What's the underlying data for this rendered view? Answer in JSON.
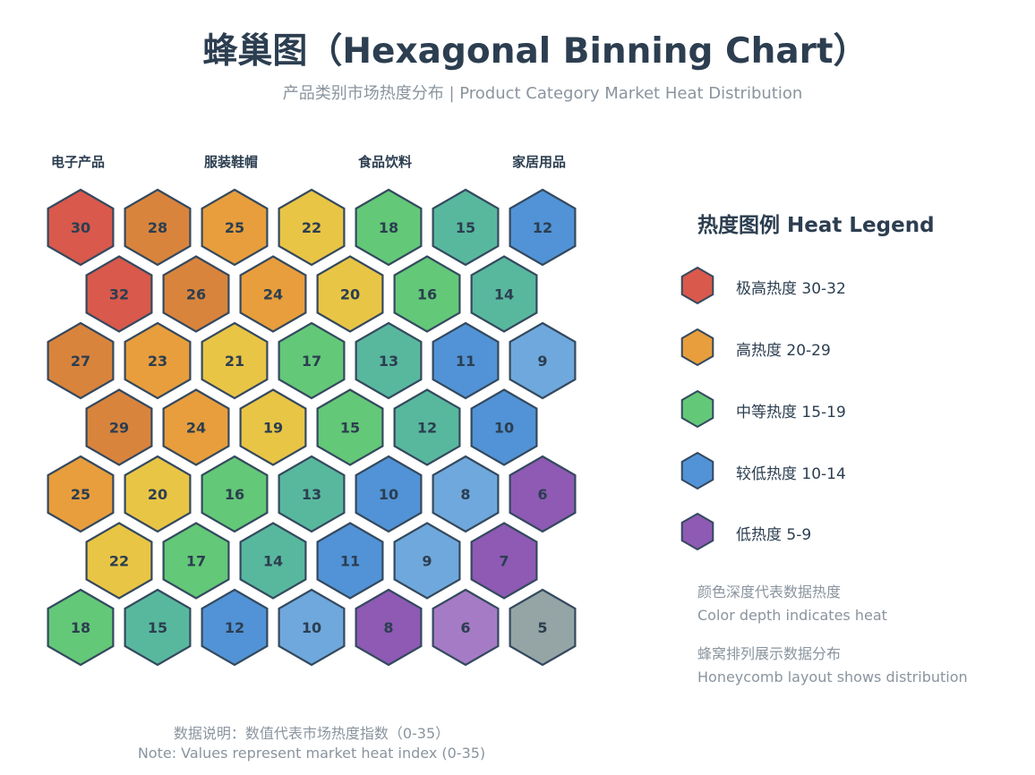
{
  "header": {
    "title": "蜂巢图（Hexagonal Binning Chart）",
    "subtitle": "产品类别市场热度分布 | Product Category Market Heat Distribution"
  },
  "chart_data": {
    "type": "heatmap",
    "layout": "hexagonal honeycomb, 7 rows; odd rows offset by half a cell",
    "categories": [
      "电子产品",
      "服装鞋帽",
      "食品饮料",
      "家居用品"
    ],
    "rows": [
      [
        30,
        28,
        25,
        22,
        18,
        15,
        12
      ],
      [
        32,
        26,
        24,
        20,
        16,
        14
      ],
      [
        27,
        23,
        21,
        17,
        13,
        11,
        9
      ],
      [
        29,
        24,
        19,
        15,
        12,
        10
      ],
      [
        25,
        20,
        16,
        13,
        10,
        8,
        6
      ],
      [
        22,
        17,
        14,
        11,
        9,
        7
      ],
      [
        18,
        15,
        12,
        10,
        8,
        6,
        5
      ]
    ],
    "value_range": [
      0,
      35
    ],
    "colors": {
      "32": "#d9594c",
      "30": "#d9594c",
      "29": "#d9843c",
      "28": "#d9843c",
      "27": "#d9843c",
      "26": "#d9843c",
      "25": "#e89e3c",
      "24": "#e89e3c",
      "23": "#e89e3c",
      "22": "#e9c545",
      "21": "#e9c545",
      "20": "#e9c545",
      "19": "#e9c545",
      "18": "#63c878",
      "17": "#63c878",
      "16": "#63c878",
      "15": "#63c878",
      "14": "#58b89e",
      "13": "#58b89e",
      "12": "#58b89e",
      "11": "#5193d6",
      "10": "#5193d6",
      "9": "#6fa8dc",
      "8": "#6fa8dc",
      "7": "#8e5ab4",
      "6": "#8e5ab4",
      "5": "#95a5a6"
    },
    "color_overrides": [
      {
        "row": 0,
        "col": 5,
        "color": "#58b89e"
      },
      {
        "row": 0,
        "col": 6,
        "color": "#5193d6"
      },
      {
        "row": 3,
        "col": 3,
        "color": "#63c878"
      },
      {
        "row": 4,
        "col": 4,
        "color": "#5193d6"
      },
      {
        "row": 4,
        "col": 5,
        "color": "#6fa8dc"
      },
      {
        "row": 4,
        "col": 6,
        "color": "#8e5ab4"
      },
      {
        "row": 5,
        "col": 4,
        "color": "#6fa8dc"
      },
      {
        "row": 5,
        "col": 5,
        "color": "#8e5ab4"
      },
      {
        "row": 6,
        "col": 0,
        "color": "#63c878"
      },
      {
        "row": 6,
        "col": 1,
        "color": "#58b89e"
      },
      {
        "row": 6,
        "col": 2,
        "color": "#5193d6"
      },
      {
        "row": 6,
        "col": 3,
        "color": "#6fa8dc"
      },
      {
        "row": 6,
        "col": 4,
        "color": "#8e5ab4"
      },
      {
        "row": 6,
        "col": 5,
        "color": "#a67bc5"
      },
      {
        "row": 6,
        "col": 6,
        "color": "#95a5a6"
      }
    ],
    "legend": [
      {
        "label": "极高热度 30-32",
        "color": "#d9594c"
      },
      {
        "label": "高热度 20-29",
        "color": "#e89e3c"
      },
      {
        "label": "中等热度 15-19",
        "color": "#63c878"
      },
      {
        "label": "较低热度 10-14",
        "color": "#5193d6"
      },
      {
        "label": "低热度 5-9",
        "color": "#8e5ab4"
      }
    ]
  },
  "legend_panel": {
    "title": "热度图例 Heat Legend",
    "notes": [
      {
        "line1": "颜色深度代表数据热度",
        "line2": "Color depth indicates heat"
      },
      {
        "line1": "蜂窝排列展示数据分布",
        "line2": "Honeycomb layout shows distribution"
      }
    ]
  },
  "footer": {
    "line1": "数据说明：数值代表市场热度指数（0-35）",
    "line2": "Note: Values represent market heat index (0-35)"
  }
}
